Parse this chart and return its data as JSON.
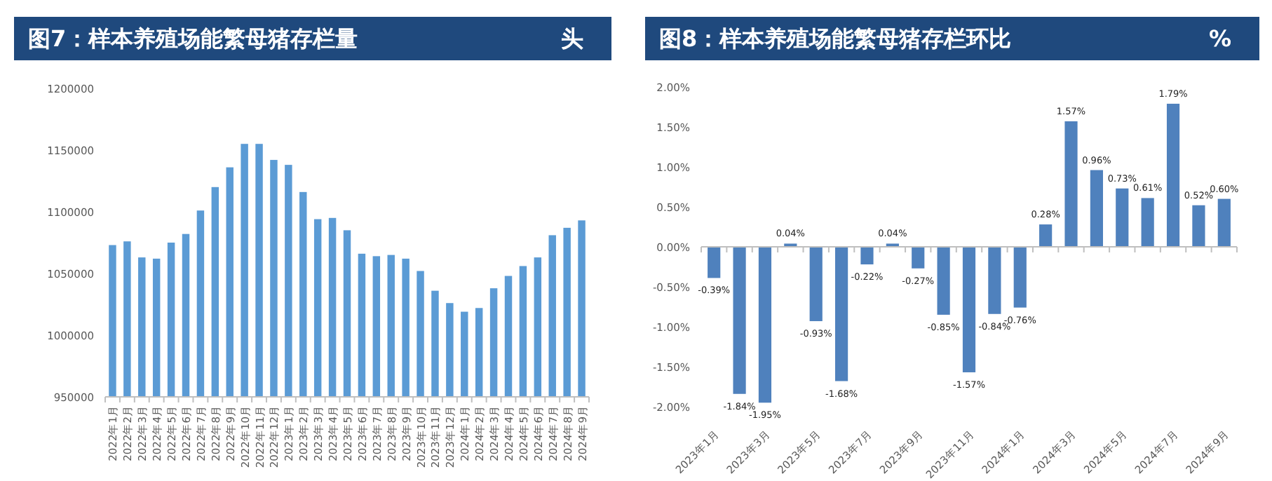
{
  "chart_data": [
    {
      "type": "bar",
      "title": "图7：样本养殖场能繁母猪存栏量",
      "subtitle": "头",
      "color": "#5b9bd5",
      "categories": [
        "2022年1月",
        "2022年2月",
        "2022年3月",
        "2022年4月",
        "2022年5月",
        "2022年6月",
        "2022年7月",
        "2022年8月",
        "2022年9月",
        "2022年10月",
        "2022年11月",
        "2022年12月",
        "2023年1月",
        "2023年2月",
        "2023年3月",
        "2023年4月",
        "2023年5月",
        "2023年6月",
        "2023年7月",
        "2023年8月",
        "2023年9月",
        "2023年10月",
        "2023年11月",
        "2023年12月",
        "2024年1月",
        "2024年2月",
        "2024年3月",
        "2024年4月",
        "2024年5月",
        "2024年6月",
        "2024年7月",
        "2024年8月",
        "2024年9月"
      ],
      "values": [
        1073000,
        1076000,
        1063000,
        1062000,
        1075000,
        1082000,
        1101000,
        1120000,
        1136000,
        1155000,
        1155000,
        1142000,
        1138000,
        1116000,
        1094000,
        1095000,
        1085000,
        1066000,
        1064000,
        1065000,
        1062000,
        1052000,
        1036000,
        1026000,
        1019000,
        1022000,
        1038000,
        1048000,
        1056000,
        1063000,
        1081000,
        1087000,
        1093000
      ],
      "ylim": [
        950000,
        1200000
      ],
      "yticks": [
        950000,
        1000000,
        1050000,
        1100000,
        1150000,
        1200000
      ]
    },
    {
      "type": "bar",
      "title": "图8：样本养殖场能繁母猪存栏环比",
      "subtitle": "%",
      "color": "#4f81bd",
      "categories": [
        "2023年1月",
        null,
        "2023年3月",
        null,
        "2023年5月",
        null,
        "2023年7月",
        null,
        "2023年9月",
        null,
        "2023年11月",
        null,
        "2024年1月",
        null,
        "2024年3月",
        null,
        "2024年5月",
        null,
        "2024年7月",
        null,
        "2024年9月"
      ],
      "values": [
        -0.39,
        -1.84,
        -1.95,
        0.04,
        -0.93,
        -1.68,
        -0.22,
        0.04,
        -0.27,
        -0.85,
        -1.57,
        -0.84,
        -0.76,
        0.28,
        1.57,
        0.96,
        0.73,
        0.61,
        1.79,
        0.52,
        0.6
      ],
      "value_labels": [
        "-0.39%",
        "-1.84%",
        "-1.95%",
        "0.04%",
        "-0.93%",
        "-1.68%",
        "-0.22%",
        "0.04%",
        "-0.27%",
        "-0.85%",
        "-1.57%",
        "-0.84%",
        "-0.76%",
        "0.28%",
        "1.57%",
        "0.96%",
        "0.73%",
        "0.61%",
        "1.79%",
        "0.52%",
        "0.60%"
      ],
      "ylim": [
        -2,
        2
      ],
      "yticks": [
        {
          "value": -2,
          "label": "-2.00%"
        },
        {
          "value": -1.5,
          "label": "-1.50%"
        },
        {
          "value": -1,
          "label": "-1.00%"
        },
        {
          "value": -0.5,
          "label": "-0.50%"
        },
        {
          "value": 0,
          "label": "0.00%"
        },
        {
          "value": 0.5,
          "label": "0.50%"
        },
        {
          "value": 1,
          "label": "1.00%"
        },
        {
          "value": 1.5,
          "label": "1.50%"
        },
        {
          "value": 2,
          "label": "2.00%"
        }
      ]
    }
  ]
}
